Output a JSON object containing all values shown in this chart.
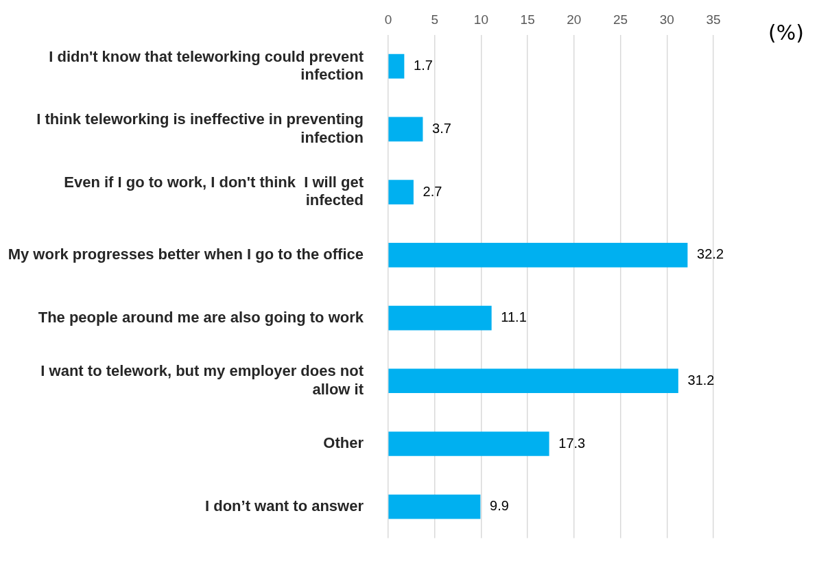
{
  "chart_data": {
    "type": "bar",
    "orientation": "horizontal",
    "xlabel": "(%)",
    "categories": [
      "I didn't know that teleworking could prevent infection",
      "I think teleworking is ineffective in preventing infection",
      "Even if I go to work, I don't think  I will get infected",
      "My work progresses better when I go to the office",
      "The people around me are also going to work",
      "I want to telework, but my employer does not allow it",
      "Other",
      "I don’t want to answer"
    ],
    "values": [
      1.7,
      3.7,
      2.7,
      32.2,
      11.1,
      31.2,
      17.3,
      9.9
    ],
    "color": "#00b0f0",
    "xlim": [
      0,
      35
    ],
    "xticks": [
      0,
      5,
      10,
      15,
      20,
      25,
      30,
      35
    ],
    "grid": "x",
    "legend": false,
    "data_labels": true
  }
}
